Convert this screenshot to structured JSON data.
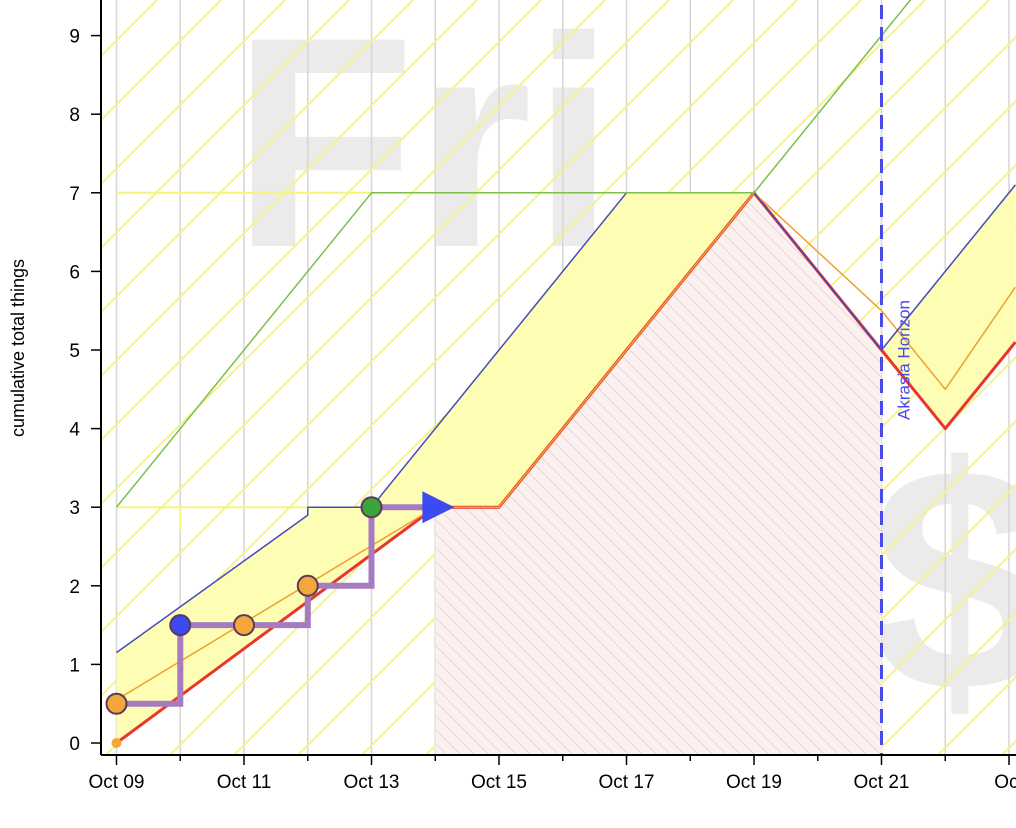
{
  "chart_data": {
    "type": "line",
    "ylabel": "cumulative total things",
    "xlabel": "",
    "x_tick_labels": [
      "Oct 09",
      "Oct 11",
      "Oct 13",
      "Oct 15",
      "Oct 17",
      "Oct 19",
      "Oct 21",
      "Oct"
    ],
    "x_tick_days": [
      9,
      11,
      13,
      15,
      17,
      19,
      21,
      23
    ],
    "y_ticks": [
      0,
      1,
      2,
      3,
      4,
      5,
      6,
      7,
      8,
      9
    ],
    "xlim": [
      "Oct 08.8",
      "Oct 23.1"
    ],
    "ylim": [
      0,
      9.4
    ],
    "grid": true,
    "watermarks": {
      "top": "Fri",
      "bottom": "$"
    },
    "akrasia_horizon": {
      "label": "Akrasia Horizon",
      "x": "Oct 21"
    },
    "datapoints": [
      {
        "x": "Oct 09",
        "y": 0.5,
        "color": "orange"
      },
      {
        "x": "Oct 10",
        "y": 1.5,
        "color": "blue"
      },
      {
        "x": "Oct 11",
        "y": 1.5,
        "color": "orange"
      },
      {
        "x": "Oct 12",
        "y": 2.0,
        "color": "orange"
      },
      {
        "x": "Oct 13",
        "y": 3.0,
        "color": "green"
      }
    ],
    "progress_line": [
      [
        9,
        0.5
      ],
      [
        10,
        0.5
      ],
      [
        10,
        1.5
      ],
      [
        12,
        1.5
      ],
      [
        12,
        2.0
      ],
      [
        13,
        2.0
      ],
      [
        13,
        3.0
      ],
      [
        14,
        3.0
      ]
    ],
    "projection_arrow": {
      "from": [
        13,
        3.0
      ],
      "to": [
        14.3,
        3.0
      ]
    },
    "series": [
      {
        "key": "road",
        "color": "#e8362b",
        "points": [
          [
            9,
            0
          ],
          [
            14,
            3
          ],
          [
            15,
            3
          ],
          [
            19,
            7
          ],
          [
            21,
            5
          ],
          [
            22,
            4
          ],
          [
            23.1,
            5.1
          ]
        ]
      },
      {
        "key": "lane1",
        "color": "#f0a030",
        "points": [
          [
            9,
            0.55
          ],
          [
            14,
            3
          ],
          [
            15,
            3
          ],
          [
            19,
            7
          ],
          [
            21,
            5.5
          ],
          [
            22,
            4.5
          ],
          [
            23.1,
            5.8
          ]
        ]
      },
      {
        "key": "lane2",
        "color": "#4a4ab8",
        "points": [
          [
            9,
            1.15
          ],
          [
            12,
            2.9
          ],
          [
            12,
            3.0
          ],
          [
            13,
            3.0
          ],
          [
            17,
            7
          ],
          [
            19,
            7
          ],
          [
            21,
            5
          ],
          [
            23.1,
            7.1
          ]
        ]
      },
      {
        "key": "lane7",
        "color": "#7cbf4a",
        "points": [
          [
            9,
            3.0
          ],
          [
            13,
            7
          ],
          [
            19,
            7
          ],
          [
            23.1,
            11.1
          ]
        ]
      }
    ],
    "yellow_band_upper": [
      [
        9,
        1.15
      ],
      [
        12,
        2.9
      ],
      [
        12,
        3.0
      ],
      [
        13,
        3.0
      ],
      [
        17,
        7
      ],
      [
        19,
        7
      ],
      [
        21,
        5
      ],
      [
        23.1,
        7.1
      ]
    ],
    "yellow_band_lower": [
      [
        9,
        0
      ],
      [
        14,
        3
      ],
      [
        15,
        3
      ],
      [
        19,
        7
      ],
      [
        21,
        5
      ],
      [
        22,
        4
      ],
      [
        23.1,
        5.1
      ]
    ],
    "deadline_region": {
      "x_from": 14,
      "x_to": 21
    },
    "colors": {
      "grid": "#d6d6d6",
      "band": "#fdfdb4",
      "hatch": "#f5f57a",
      "danger_fill": "#fbf1f1",
      "danger_hatch": "#e8d6d6",
      "progress": "#a77bbf",
      "arrow": "#3b4bf0",
      "horizon": "#4a4ae8",
      "dot_orange": "#f5a63a",
      "dot_blue": "#3b4bf0",
      "dot_green": "#3aa53a"
    }
  }
}
